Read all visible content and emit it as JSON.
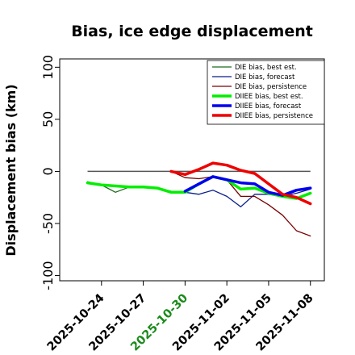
{
  "chart_data": {
    "type": "line",
    "title": "Bias, ice edge displacement",
    "ylabel": "Displacement bias (km)",
    "ylim": [
      -105,
      108
    ],
    "yticks": [
      100,
      50,
      0,
      -50,
      -100
    ],
    "x_range": [
      "2025-10-21",
      "2025-11-09"
    ],
    "xticks": [
      {
        "label": "2025-10-24",
        "date": "2025-10-24",
        "color": "#000000"
      },
      {
        "label": "2025-10-27",
        "date": "2025-10-27",
        "color": "#000000"
      },
      {
        "label": "2025-10-30",
        "date": "2025-10-30",
        "color": "#1a8a1a"
      },
      {
        "label": "2025-11-02",
        "date": "2025-11-02",
        "color": "#000000"
      },
      {
        "label": "2025-11-05",
        "date": "2025-11-05",
        "color": "#000000"
      },
      {
        "label": "2025-11-08",
        "date": "2025-11-08",
        "color": "#000000"
      }
    ],
    "zero_line": {
      "from": "2025-10-23",
      "to": "2025-11-08",
      "y": 0,
      "color": "#555555"
    },
    "legend_position": "top-right",
    "series": [
      {
        "name": "DIE bias, best est.",
        "color": "#1a6b1a",
        "width": 1.3,
        "x": [
          "2025-10-23",
          "2025-10-24",
          "2025-10-25",
          "2025-10-26",
          "2025-10-27",
          "2025-10-28",
          "2025-10-29",
          "2025-10-30"
        ],
        "y": [
          -10,
          -13,
          -20,
          -15,
          -15,
          -16,
          -19,
          -20
        ]
      },
      {
        "name": "DIE bias, forecast",
        "color": "#0a1f8a",
        "width": 1.3,
        "x": [
          "2025-10-30",
          "2025-10-31",
          "2025-11-01",
          "2025-11-02",
          "2025-11-03",
          "2025-11-04",
          "2025-11-05",
          "2025-11-06",
          "2025-11-07",
          "2025-11-08"
        ],
        "y": [
          -20,
          -22,
          -18,
          -24,
          -34,
          -22,
          -22,
          -24,
          -21,
          -17
        ]
      },
      {
        "name": "DIE bias, persistence",
        "color": "#7a0000",
        "width": 1.3,
        "x": [
          "2025-10-29",
          "2025-10-30",
          "2025-10-31",
          "2025-11-01",
          "2025-11-02",
          "2025-11-03",
          "2025-11-04",
          "2025-11-05",
          "2025-11-06",
          "2025-11-07",
          "2025-11-08"
        ],
        "y": [
          0,
          -6,
          -7,
          -5,
          -8,
          -24,
          -24,
          -32,
          -42,
          -57,
          -62
        ]
      },
      {
        "name": "DIIEE bias, best est.",
        "color": "#00ee00",
        "width": 3.5,
        "x": [
          "2025-10-23",
          "2025-10-24",
          "2025-10-25",
          "2025-10-26",
          "2025-10-27",
          "2025-10-28",
          "2025-10-29",
          "2025-10-30",
          "2025-10-31",
          "2025-11-01",
          "2025-11-02",
          "2025-11-03",
          "2025-11-04",
          "2025-11-05",
          "2025-11-06",
          "2025-11-07",
          "2025-11-08"
        ],
        "y": [
          -11,
          -13,
          -14,
          -15,
          -15,
          -16,
          -20,
          -20,
          -12,
          -5,
          -8,
          -17,
          -16,
          -21,
          -24,
          -26,
          -21
        ]
      },
      {
        "name": "DIIEE bias, forecast",
        "color": "#0000ee",
        "width": 3.5,
        "x": [
          "2025-10-30",
          "2025-10-31",
          "2025-11-01",
          "2025-11-02",
          "2025-11-03",
          "2025-11-04",
          "2025-11-05",
          "2025-11-06",
          "2025-11-07",
          "2025-11-08"
        ],
        "y": [
          -19,
          -12,
          -5,
          -8,
          -11,
          -12,
          -20,
          -23,
          -18,
          -16
        ]
      },
      {
        "name": "DIIEE bias, persistence",
        "color": "#ee0000",
        "width": 3.5,
        "x": [
          "2025-10-29",
          "2025-10-30",
          "2025-10-31",
          "2025-11-01",
          "2025-11-02",
          "2025-11-03",
          "2025-11-04",
          "2025-11-05",
          "2025-11-06",
          "2025-11-07",
          "2025-11-08"
        ],
        "y": [
          0,
          -3,
          2,
          8,
          6,
          1,
          -2,
          -12,
          -22,
          -25,
          -31
        ]
      }
    ]
  }
}
